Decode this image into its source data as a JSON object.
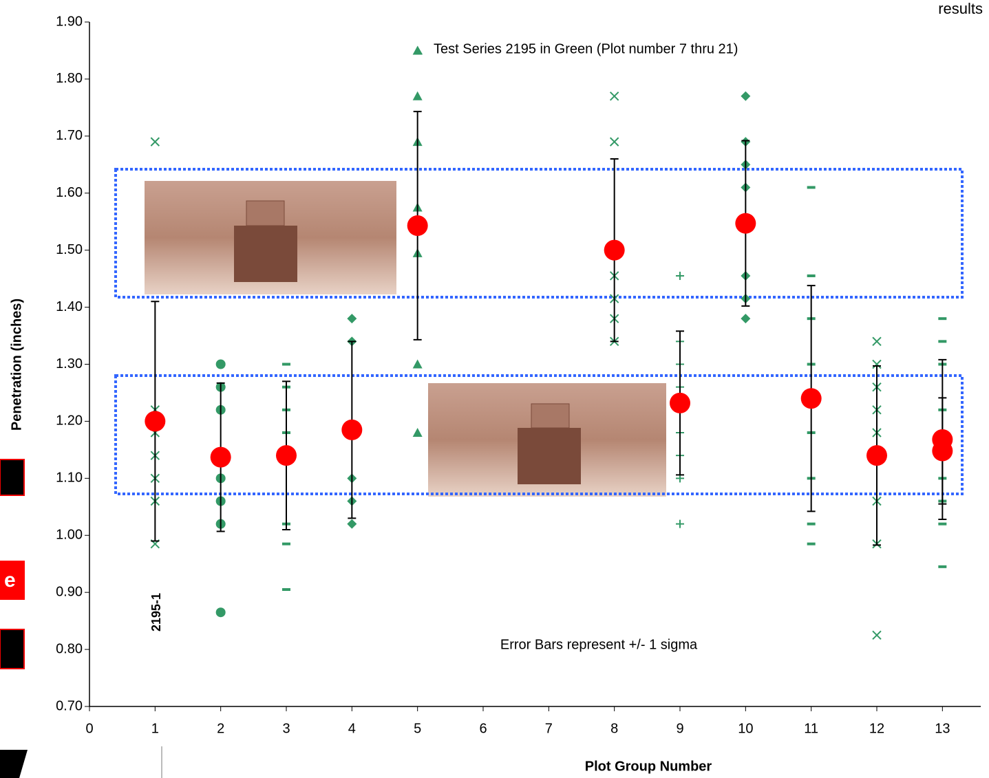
{
  "chart_data": {
    "type": "scatter",
    "corner_note": "results",
    "side_note": "e",
    "annotations": [
      "Test Series 2195 in Green (Plot number 7 thru 21)",
      "Error Bars represent +/- 1 sigma",
      "2195-1"
    ],
    "xlabel": "Plot Group Number",
    "ylabel": "Penetration (inches)",
    "xlim": [
      0,
      13.5
    ],
    "xticks": [
      0,
      1,
      2,
      3,
      4,
      5,
      6,
      7,
      8,
      9,
      10,
      11,
      12,
      13
    ],
    "ylim": [
      0.7,
      1.9
    ],
    "yticks": [
      {
        "value": 0.7,
        "label": "0.70"
      },
      {
        "value": 0.8,
        "label": "0.80"
      },
      {
        "value": 0.9,
        "label": "0.90"
      },
      {
        "value": 1.0,
        "label": "1.00"
      },
      {
        "value": 1.1,
        "label": "1.10"
      },
      {
        "value": 1.2,
        "label": "1.20"
      },
      {
        "value": 1.3,
        "label": "1.30"
      },
      {
        "value": 1.4,
        "label": "1.40"
      },
      {
        "value": 1.5,
        "label": "1.50"
      },
      {
        "value": 1.6,
        "label": "1.60"
      },
      {
        "value": 1.7,
        "label": "1.70"
      },
      {
        "value": 1.8,
        "label": "1.80"
      },
      {
        "value": 1.9,
        "label": "1.90"
      }
    ],
    "point_color": "#339966",
    "groups": [
      {
        "x": 1,
        "marker": "x",
        "values": [
          1.69,
          1.22,
          1.18,
          1.14,
          1.1,
          1.06,
          0.985
        ]
      },
      {
        "x": 2,
        "marker": "circle",
        "values": [
          1.3,
          1.26,
          1.22,
          1.1,
          1.06,
          1.02,
          0.865
        ]
      },
      {
        "x": 3,
        "marker": "dash",
        "values": [
          1.3,
          1.26,
          1.22,
          1.18,
          1.02,
          0.985,
          0.905
        ]
      },
      {
        "x": 4,
        "marker": "diamond",
        "values": [
          1.38,
          1.34,
          1.1,
          1.06,
          1.02
        ]
      },
      {
        "x": 5,
        "marker": "triangle",
        "values": [
          1.85,
          1.77,
          1.69,
          1.575,
          1.495,
          1.3,
          1.18
        ]
      },
      {
        "x": 8,
        "marker": "x",
        "values": [
          1.77,
          1.69,
          1.455,
          1.415,
          1.38,
          1.34
        ]
      },
      {
        "x": 9,
        "marker": "plus",
        "values": [
          1.455,
          1.34,
          1.3,
          1.26,
          1.18,
          1.14,
          1.1,
          1.02
        ]
      },
      {
        "x": 10,
        "marker": "diamond",
        "values": [
          1.77,
          1.69,
          1.65,
          1.61,
          1.455,
          1.415,
          1.38
        ]
      },
      {
        "x": 11,
        "marker": "dash",
        "values": [
          1.61,
          1.455,
          1.38,
          1.3,
          1.18,
          1.1,
          1.02,
          0.985
        ]
      },
      {
        "x": 12,
        "marker": "x",
        "values": [
          1.34,
          1.3,
          1.26,
          1.22,
          1.18,
          1.06,
          0.985,
          0.825
        ]
      },
      {
        "x": 13,
        "marker": "dash",
        "values": [
          1.38,
          1.34,
          1.3,
          1.22,
          1.1,
          1.06,
          1.02,
          0.945
        ]
      }
    ],
    "means": {
      "color": "#ff0000",
      "x": [
        1,
        2,
        3,
        4,
        5,
        8,
        9,
        10,
        11,
        12,
        13,
        13
      ],
      "values": [
        1.2,
        1.137,
        1.14,
        1.185,
        1.543,
        1.5,
        1.232,
        1.547,
        1.24,
        1.14,
        1.168,
        1.148
      ],
      "errors": [
        0.21,
        0.13,
        0.13,
        0.155,
        0.2,
        0.16,
        0.126,
        0.145,
        0.198,
        0.157,
        0.14,
        0.093
      ]
    }
  }
}
